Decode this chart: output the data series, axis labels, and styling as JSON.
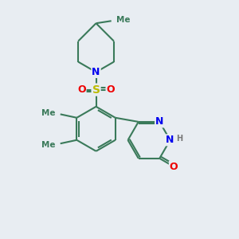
{
  "bg_color": "#e8edf2",
  "bond_color": "#3a7a5a",
  "line_width": 1.5,
  "atom_colors": {
    "N": "#0000ee",
    "O": "#ee0000",
    "S": "#bbbb00",
    "H": "#777777",
    "C": "#3a7a5a"
  },
  "font_size": 9,
  "figsize": [
    3.0,
    3.0
  ],
  "dpi": 100,
  "xlim": [
    0,
    10
  ],
  "ylim": [
    0,
    10
  ]
}
